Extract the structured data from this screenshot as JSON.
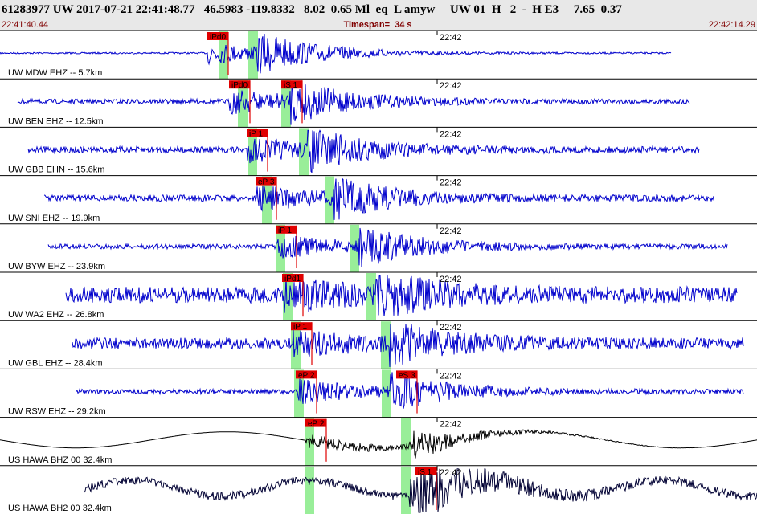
{
  "header": {
    "event_line": "61283977 UW 2017-07-21 22:41:48.77   46.5983 -119.8332   8.02  0.65 Ml  eq  L amyw     UW 01  H   2  -  H E3     7.65  0.37",
    "start_time": "22:41:40.44",
    "timespan": "Timespan=  34 s",
    "end_time": "22:42:14.29"
  },
  "traces": [
    {
      "label": "UW MDW EHZ -- 5.7km",
      "time_mark": "22:42",
      "picks": [
        "iPd0"
      ]
    },
    {
      "label": "UW BEN EHZ -- 12.5km",
      "time_mark": "22:42",
      "picks": [
        "iPd0",
        "iS 1"
      ]
    },
    {
      "label": "UW GBB EHN -- 15.6km",
      "time_mark": "22:42",
      "picks": [
        "iP 1"
      ]
    },
    {
      "label": "UW SNI EHZ -- 19.9km",
      "time_mark": "22:42",
      "picks": [
        "eP 3"
      ]
    },
    {
      "label": "UW BYW EHZ -- 23.9km",
      "time_mark": "22:42",
      "picks": [
        "iP 1"
      ]
    },
    {
      "label": "UW WA2 EHZ -- 26.8km",
      "time_mark": "22:42",
      "picks": [
        "iPd1"
      ]
    },
    {
      "label": "UW GBL EHZ -- 28.4km",
      "time_mark": "22:42",
      "picks": [
        "iP 1"
      ]
    },
    {
      "label": "UW RSW EHZ -- 29.2km",
      "time_mark": "22:42",
      "picks": [
        "eP 2",
        "eS 3"
      ]
    },
    {
      "label": "US HAWA BHZ 00 32.4km",
      "time_mark": "22:42",
      "picks": [
        "eP 2"
      ]
    },
    {
      "label": "US HAWA BH2 00 32.4km",
      "time_mark": "22:42",
      "picks": [
        "iS 1"
      ]
    }
  ]
}
